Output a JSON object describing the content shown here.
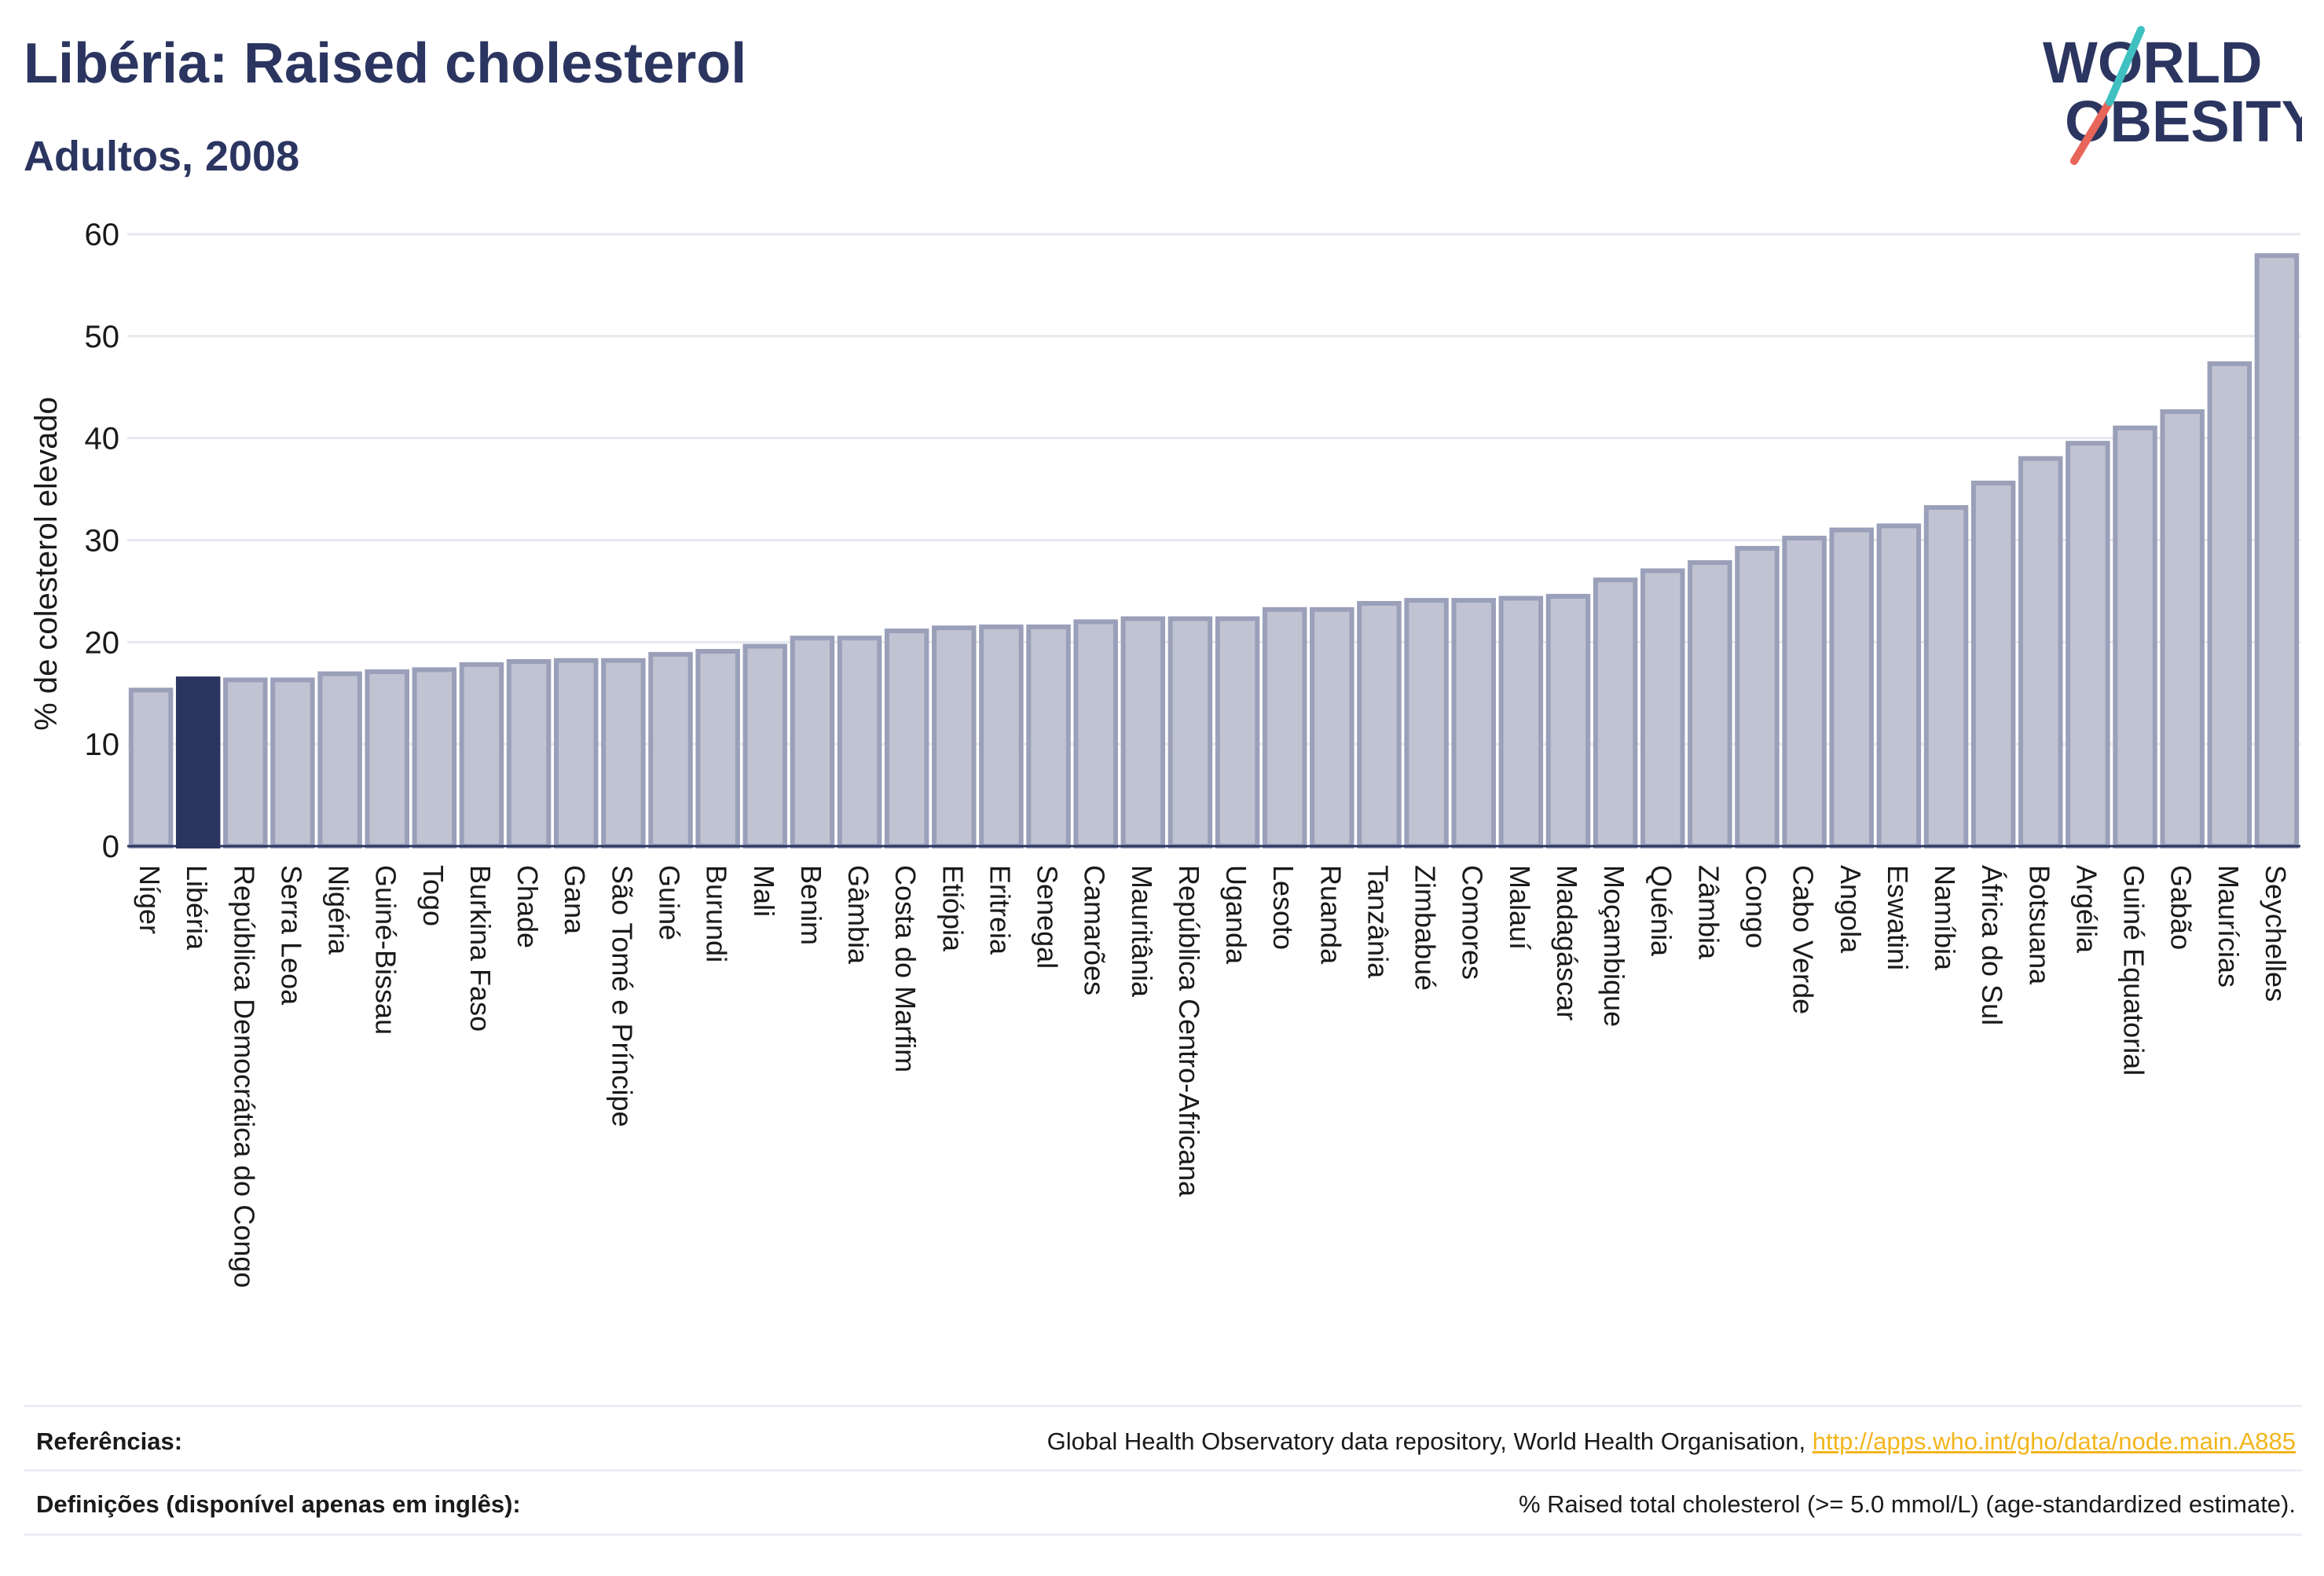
{
  "header": {
    "title": "Libéria: Raised cholesterol",
    "subtitle": "Adultos, 2008"
  },
  "logo": {
    "line1": "WORLD",
    "line2": "OBESITY"
  },
  "colors": {
    "bar": "#bfc3d2",
    "bar_border": "#9aa0b9",
    "highlight": "#2b3560",
    "grid": "#e6e8ef",
    "axis": "#2b3560",
    "text": "#1a1a1a",
    "link": "#f2b51d"
  },
  "chart_data": {
    "type": "bar",
    "ylabel": "% de colesterol elevado",
    "ylim": [
      0,
      60
    ],
    "yticks": [
      0,
      10,
      20,
      30,
      40,
      50,
      60
    ],
    "highlight": "Libéria",
    "grid": true,
    "categories": [
      "Níger",
      "Libéria",
      "República Democrática do Congo",
      "Serra Leoa",
      "Nigéria",
      "Guiné-Bissau",
      "Togo",
      "Burkina Faso",
      "Chade",
      "Gana",
      "São Tomé e Príncipe",
      "Guiné",
      "Burundi",
      "Mali",
      "Benim",
      "Gâmbia",
      "Costa do Marfim",
      "Etiópia",
      "Eritreia",
      "Senegal",
      "Camarões",
      "Mauritânia",
      "República Centro-Africana",
      "Uganda",
      "Lesoto",
      "Ruanda",
      "Tanzânia",
      "Zimbabué",
      "Comores",
      "Malauí",
      "Madagáscar",
      "Moçambique",
      "Quénia",
      "Zâmbia",
      "Congo",
      "Cabo Verde",
      "Angola",
      "Eswatini",
      "Namíbia",
      "África do Sul",
      "Botsuana",
      "Argélia",
      "Guiné Equatorial",
      "Gabão",
      "Maurícias",
      "Seychelles"
    ],
    "values": [
      15.3,
      16.4,
      16.3,
      16.3,
      16.9,
      17.1,
      17.3,
      17.8,
      18.1,
      18.2,
      18.2,
      18.8,
      19.1,
      19.6,
      20.4,
      20.4,
      21.1,
      21.4,
      21.5,
      21.5,
      22.0,
      22.3,
      22.3,
      22.3,
      23.2,
      23.2,
      23.8,
      24.1,
      24.1,
      24.3,
      24.5,
      26.1,
      27.0,
      27.8,
      29.2,
      30.2,
      31.0,
      31.4,
      33.2,
      35.6,
      38.0,
      39.5,
      41.0,
      42.6,
      47.3,
      57.9
    ]
  },
  "footer": {
    "references_label": "Referências:",
    "references_text": "Global Health Observatory data repository, World Health Organisation, ",
    "references_link": "http://apps.who.int/gho/data/node.main.A885",
    "definitions_label": "Definições (disponível apenas em inglês):",
    "definitions_text": "% Raised total cholesterol (>= 5.0 mmol/L) (age-standardized estimate)."
  }
}
